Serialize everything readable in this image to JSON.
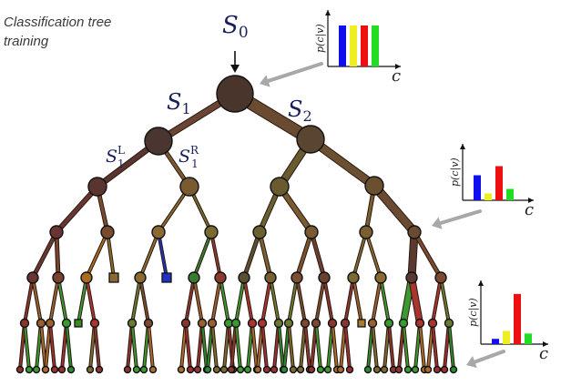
{
  "title": {
    "line1": "Classification tree",
    "line2": "training"
  },
  "node_labels": {
    "root": "S0",
    "left": "S1",
    "right": "S2",
    "left_left": "S1L",
    "left_right": "S1R"
  },
  "histograms": [
    {
      "name": "root",
      "ylabel": "p(c|v)",
      "xlabel": "c",
      "values": [
        0.9,
        0.9,
        0.9,
        0.9
      ],
      "colors": [
        "#1010ee",
        "#eeee22",
        "#ee1010",
        "#22dd22"
      ]
    },
    {
      "name": "middle",
      "ylabel": "p(c|v)",
      "xlabel": "c",
      "values": [
        0.55,
        0.15,
        0.75,
        0.25
      ],
      "colors": [
        "#1010ee",
        "#eeee22",
        "#ee1010",
        "#22dd22"
      ]
    },
    {
      "name": "leaf",
      "ylabel": "p(c|v)",
      "xlabel": "c",
      "values": [
        0.1,
        0.25,
        0.95,
        0.2
      ],
      "colors": [
        "#1010ee",
        "#eeee22",
        "#ee1010",
        "#22dd22"
      ]
    }
  ],
  "colors": {
    "node_dark": "#4a352c",
    "node_brown": "#7a5a30",
    "arrow_grey": "#a8a8a8",
    "label_blue": "#1a1f5c"
  }
}
